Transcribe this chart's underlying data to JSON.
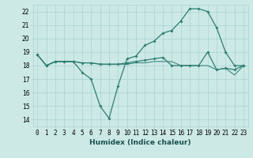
{
  "title": "",
  "xlabel": "Humidex (Indice chaleur)",
  "ylabel": "",
  "background_color": "#cce9e6",
  "grid_color": "#aad4d0",
  "line_color": "#2e7d72",
  "xlim": [
    -0.5,
    23.5
  ],
  "ylim": [
    13.5,
    22.5
  ],
  "xticks": [
    0,
    1,
    2,
    3,
    4,
    5,
    6,
    7,
    8,
    9,
    10,
    11,
    12,
    13,
    14,
    15,
    16,
    17,
    18,
    19,
    20,
    21,
    22,
    23
  ],
  "yticks": [
    14,
    15,
    16,
    17,
    18,
    19,
    20,
    21,
    22
  ],
  "line1_x": [
    0,
    1,
    2,
    3,
    4,
    5,
    6,
    7,
    8,
    9,
    10,
    11,
    12,
    13,
    14,
    15,
    16,
    17,
    18,
    19,
    20,
    21,
    22,
    23
  ],
  "line1_y": [
    18.8,
    18.0,
    18.3,
    18.3,
    18.3,
    17.5,
    17.0,
    15.0,
    14.1,
    16.5,
    18.5,
    18.7,
    19.5,
    19.8,
    20.4,
    20.6,
    21.3,
    22.2,
    22.2,
    22.0,
    20.8,
    19.0,
    18.0,
    18.0
  ],
  "line2_x": [
    0,
    1,
    2,
    3,
    4,
    5,
    6,
    7,
    8,
    9,
    10,
    11,
    12,
    13,
    14,
    15,
    16,
    17,
    18,
    19,
    20,
    21,
    22,
    23
  ],
  "line2_y": [
    18.8,
    18.0,
    18.3,
    18.3,
    18.3,
    18.2,
    18.2,
    18.1,
    18.1,
    18.1,
    18.2,
    18.3,
    18.4,
    18.5,
    18.6,
    18.0,
    18.0,
    18.0,
    18.0,
    19.0,
    17.7,
    17.8,
    17.7,
    18.0
  ],
  "line3_x": [
    0,
    1,
    2,
    3,
    4,
    5,
    6,
    7,
    8,
    9,
    10,
    11,
    12,
    13,
    14,
    15,
    16,
    17,
    18,
    19,
    20,
    21,
    22,
    23
  ],
  "line3_y": [
    18.8,
    18.0,
    18.3,
    18.3,
    18.3,
    18.2,
    18.2,
    18.1,
    18.1,
    18.1,
    18.1,
    18.2,
    18.2,
    18.3,
    18.3,
    18.3,
    18.0,
    18.0,
    18.0,
    18.0,
    17.7,
    17.8,
    17.3,
    18.0
  ]
}
